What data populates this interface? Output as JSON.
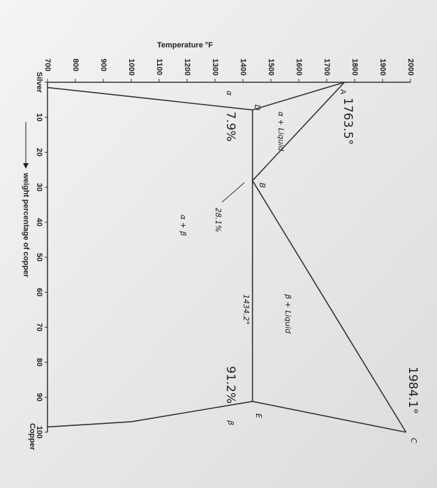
{
  "chart_data": {
    "type": "phase-diagram",
    "y_label": "Temperature °F",
    "x_label": "weight percentage of copper",
    "xlim": [
      0,
      100
    ],
    "xticks": [
      {
        "value": 0,
        "label": "Silver"
      },
      10,
      20,
      30,
      40,
      50,
      60,
      70,
      80,
      90,
      100
    ],
    "ylim": [
      700,
      2000
    ],
    "yticks": [
      700,
      800,
      900,
      1000,
      1100,
      1200,
      1300,
      1400,
      1500,
      1600,
      1700,
      1800,
      1900,
      2000
    ],
    "series": [
      {
        "color": "#333333",
        "x": [
          0,
          28.1,
          100
        ],
        "values": [
          1763.5,
          1434.2,
          1984.1
        ]
      },
      {
        "color": "#333333",
        "x": [
          0,
          7.9
        ],
        "values": [
          1763.5,
          1434.2
        ]
      },
      {
        "color": "#333333",
        "x": [
          100,
          91.2
        ],
        "values": [
          1984.1,
          1434.2
        ]
      },
      {
        "color": "#333333",
        "x": [
          7.9,
          91.2
        ],
        "values": [
          1434.2,
          1434.2
        ]
      },
      {
        "color": "#333333",
        "x": [
          7.9,
          1.5
        ],
        "values": [
          1434.2,
          700
        ]
      },
      {
        "color": "#333333",
        "x": [
          91.2,
          97,
          98.5
        ],
        "values": [
          1434.2,
          1000,
          700
        ]
      }
    ],
    "annotations": [
      "1763.5°",
      "A",
      "1984.1°",
      "C",
      "D",
      "α",
      "7.9%",
      "α + Liquid",
      "B",
      "28.1%",
      "α + β",
      "β + Liquid",
      "1434.2°",
      "91.2%",
      "E",
      "β",
      "Copper"
    ]
  }
}
